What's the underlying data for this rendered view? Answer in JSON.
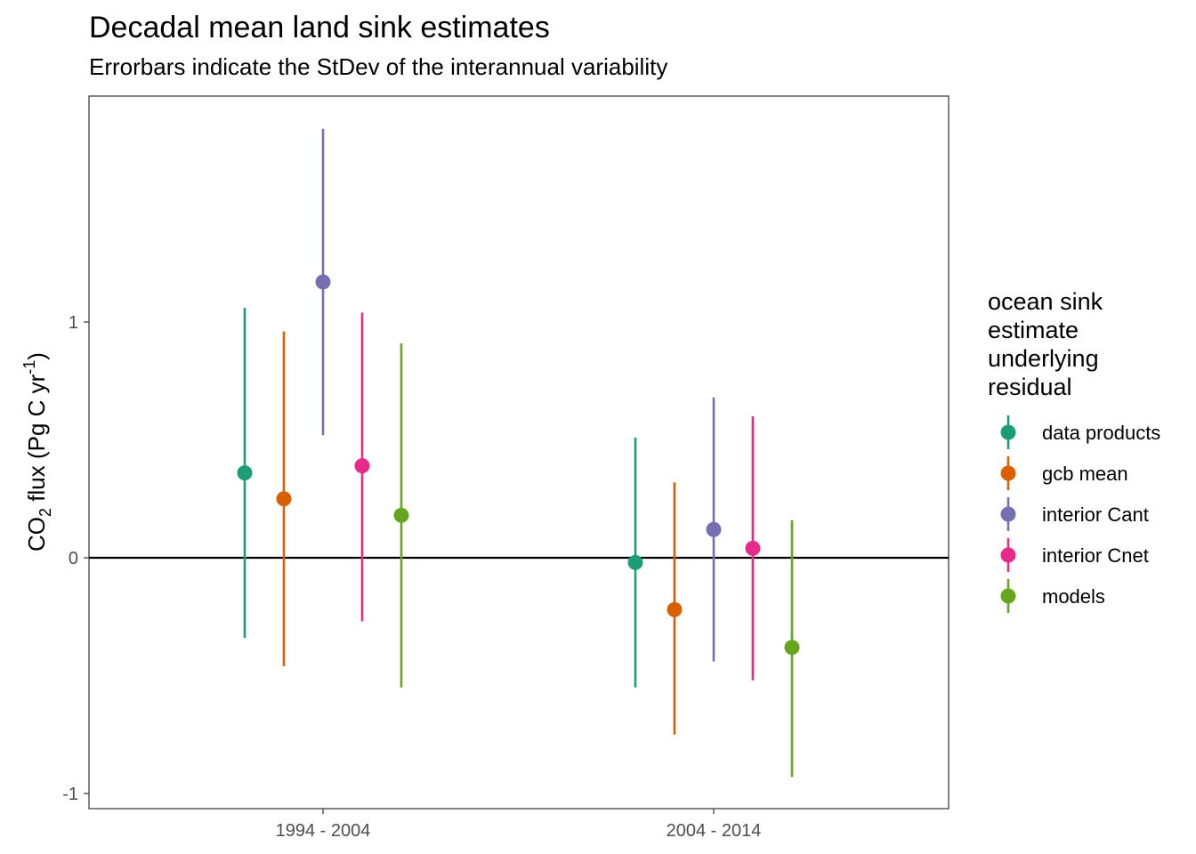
{
  "chart_data": {
    "type": "scatter",
    "title": "Decadal mean land sink estimates",
    "subtitle": "Errorbars indicate the StDev of the interannual variability",
    "ylabel": {
      "main": "CO",
      "sub": "2",
      "rest1": " flux (Pg C yr",
      "sup": "-1",
      "rest2": ")"
    },
    "xlabel": "",
    "categories": [
      "1994 - 2004",
      "2004 - 2014"
    ],
    "ylim": [
      -1.06,
      1.97
    ],
    "yticks": [
      -1,
      0,
      1
    ],
    "ytick_labels": [
      "-1",
      "0",
      "1"
    ],
    "hline": 0,
    "grid": false,
    "legend": {
      "title_lines": [
        "ocean sink",
        "estimate",
        "underlying",
        "residual"
      ],
      "placement": "right"
    },
    "series": [
      {
        "name": "data products",
        "color": "#1B9E77",
        "mean": [
          0.36,
          -0.02
        ],
        "lower": [
          -0.34,
          -0.55
        ],
        "upper": [
          1.06,
          0.51
        ]
      },
      {
        "name": "gcb mean",
        "color": "#D95F02",
        "mean": [
          0.25,
          -0.22
        ],
        "lower": [
          -0.46,
          -0.75
        ],
        "upper": [
          0.96,
          0.32
        ]
      },
      {
        "name": "interior Cant",
        "color": "#7570B3",
        "mean": [
          1.17,
          0.12
        ],
        "lower": [
          0.52,
          -0.44
        ],
        "upper": [
          1.82,
          0.68
        ]
      },
      {
        "name": "interior Cnet",
        "color": "#E7298A",
        "mean": [
          0.39,
          0.04
        ],
        "lower": [
          -0.27,
          -0.52
        ],
        "upper": [
          1.04,
          0.6
        ]
      },
      {
        "name": "models",
        "color": "#66A61E",
        "mean": [
          0.18,
          -0.38
        ],
        "lower": [
          -0.55,
          -0.93
        ],
        "upper": [
          0.91,
          0.16
        ]
      }
    ]
  }
}
